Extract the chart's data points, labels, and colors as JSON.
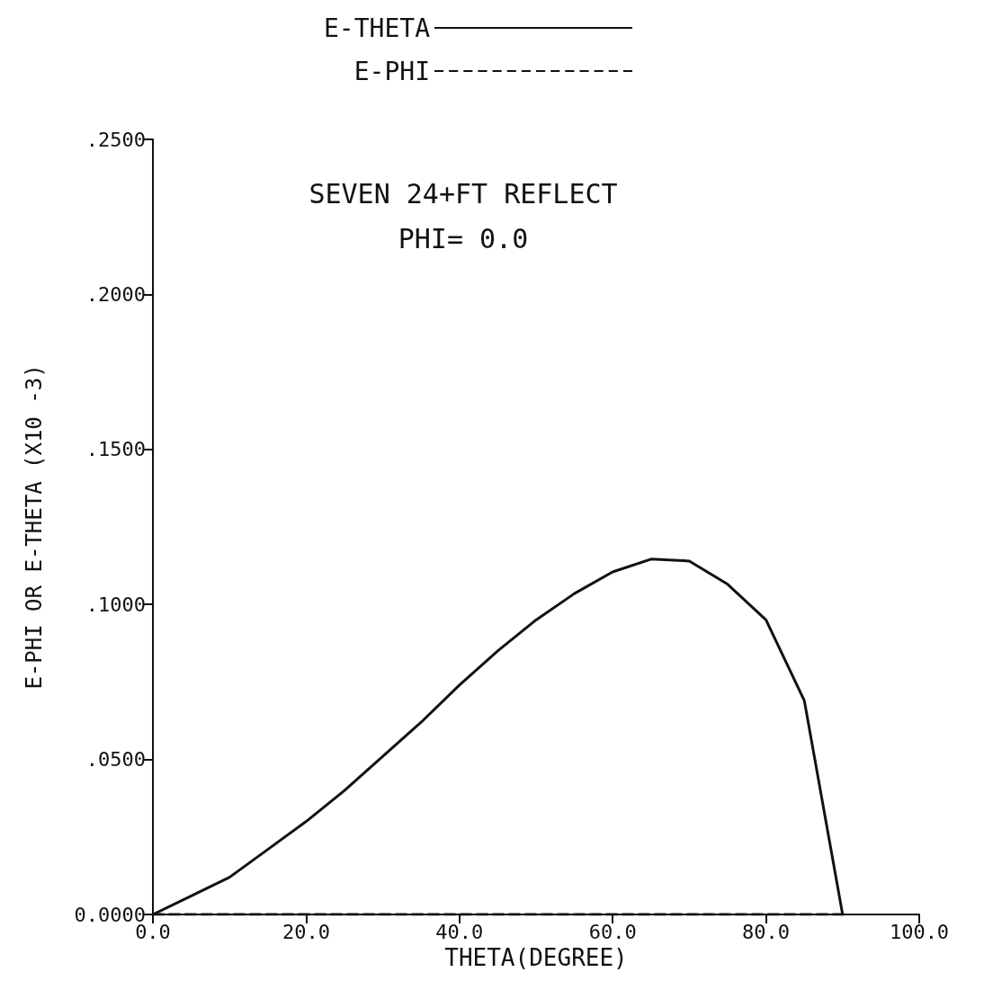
{
  "chart_data": {
    "type": "line",
    "title": "SEVEN 24+FT REFLECT",
    "subtitle": "PHI= 0.0",
    "xlabel": "THETA(DEGREE)",
    "ylabel": "E-PHI OR E-THETA (X10 -3)",
    "x": [
      0,
      5,
      10,
      15,
      20,
      25,
      30,
      35,
      40,
      45,
      50,
      55,
      60,
      65,
      70,
      75,
      80,
      85,
      90
    ],
    "series": [
      {
        "name": "E-THETA",
        "color": "#111111",
        "line_style": "solid",
        "values": [
          0,
          0.006,
          0.012,
          0.021,
          0.03,
          0.04,
          0.051,
          0.062,
          0.074,
          0.085,
          0.095,
          0.1035,
          0.1105,
          0.1146,
          0.114,
          0.1065,
          0.095,
          0.069,
          0
        ]
      },
      {
        "name": "E-PHI",
        "color": "#111111",
        "line_style": "dashed",
        "values": [
          0,
          0,
          0,
          0,
          0,
          0,
          0,
          0,
          0,
          0,
          0,
          0,
          0,
          0,
          0,
          0,
          0,
          0,
          0
        ]
      }
    ],
    "xlim": [
      0,
      100
    ],
    "xticks": [
      {
        "value": 0,
        "label": "0.0"
      },
      {
        "value": 20,
        "label": "20.0"
      },
      {
        "value": 40,
        "label": "40.0"
      },
      {
        "value": 60,
        "label": "60.0"
      },
      {
        "value": 80,
        "label": "80.0"
      },
      {
        "value": 100,
        "label": "100.0"
      }
    ],
    "ylim": [
      0,
      0.25
    ],
    "yticks": [
      {
        "value": 0,
        "label": "0.0000"
      },
      {
        "value": 0.05,
        "label": ".0500"
      },
      {
        "value": 0.1,
        "label": ".1000"
      },
      {
        "value": 0.15,
        "label": ".1500"
      },
      {
        "value": 0.2,
        "label": ".2000"
      },
      {
        "value": 0.25,
        "label": ".2500"
      }
    ],
    "grid": false,
    "legend": "top",
    "marker": "none"
  }
}
